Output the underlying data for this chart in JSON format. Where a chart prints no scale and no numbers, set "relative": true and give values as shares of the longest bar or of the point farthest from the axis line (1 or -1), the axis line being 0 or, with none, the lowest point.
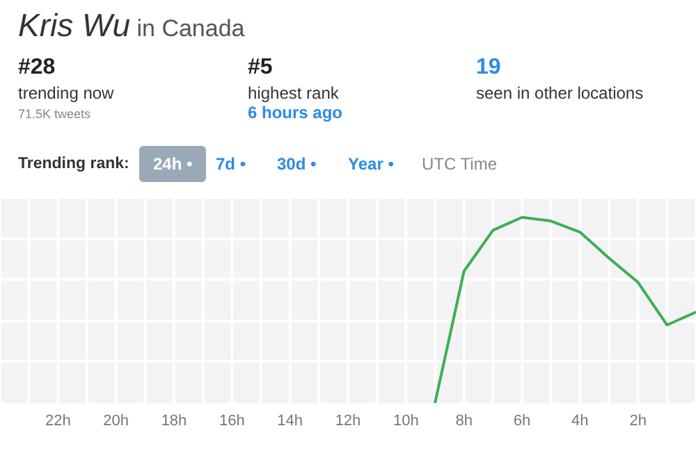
{
  "chart_data": {
    "type": "line",
    "title": "Kris Wu",
    "subtitle": "in Canada",
    "annotations": [
      "#28",
      "trending now",
      "71.5K tweets",
      "#5",
      "highest rank",
      "6 hours ago",
      "19",
      "seen in other locations",
      "Trending rank:",
      "24h •",
      "7d •",
      "30d •",
      "Year •",
      "UTC Time"
    ],
    "relative": true,
    "x": [
      9,
      8,
      7,
      6,
      5,
      4,
      3,
      2,
      1,
      0
    ],
    "series": [
      {
        "color": "#3cb054",
        "values": [
          0,
          0.71,
          0.93,
          1,
          0.98,
          0.92,
          0.78,
          0.65,
          0.42,
          0.49
        ]
      }
    ],
    "xlim": [
      24,
      0
    ],
    "xticks": [
      {
        "value": 24,
        "label": null
      },
      {
        "value": 23,
        "label": null
      },
      {
        "value": 22,
        "label": "22h"
      },
      {
        "value": 21,
        "label": null
      },
      {
        "value": 20,
        "label": "20h"
      },
      {
        "value": 19,
        "label": null
      },
      {
        "value": 18,
        "label": "18h"
      },
      {
        "value": 17,
        "label": null
      },
      {
        "value": 16,
        "label": "16h"
      },
      {
        "value": 15,
        "label": null
      },
      {
        "value": 14,
        "label": "14h"
      },
      {
        "value": 13,
        "label": null
      },
      {
        "value": 12,
        "label": "12h"
      },
      {
        "value": 11,
        "label": null
      },
      {
        "value": 10,
        "label": "10h"
      },
      {
        "value": 9,
        "label": null
      },
      {
        "value": 8,
        "label": "8h"
      },
      {
        "value": 7,
        "label": null
      },
      {
        "value": 6,
        "label": "6h"
      },
      {
        "value": 5,
        "label": null
      },
      {
        "value": 4,
        "label": "4h"
      },
      {
        "value": 3,
        "label": null
      },
      {
        "value": 2,
        "label": "2h"
      },
      {
        "value": 1,
        "label": null
      },
      {
        "value": 0,
        "label": null
      }
    ],
    "grid": true,
    "marker": "none",
    "line_style": "solid"
  }
}
